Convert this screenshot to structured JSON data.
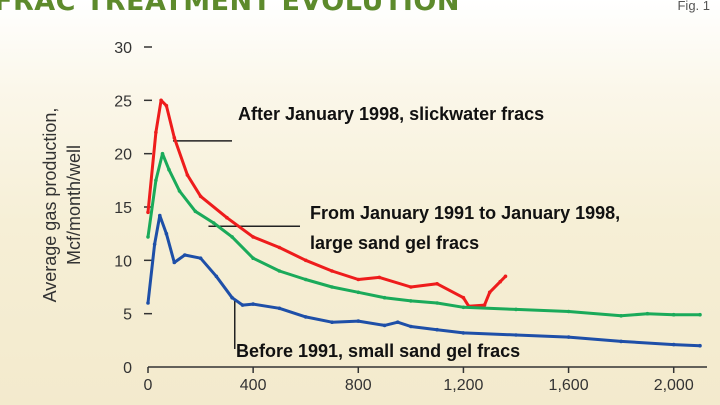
{
  "header": {
    "title": "FRAC TREATMENT EVOLUTION",
    "figure_label": "Fig. 1"
  },
  "chart_data": {
    "type": "line",
    "title": "FRAC TREATMENT EVOLUTION",
    "xlabel": "",
    "ylabel_lines": [
      "Average gas production,",
      "Mcf/month/well"
    ],
    "xlim": [
      0,
      2100
    ],
    "ylim": [
      0,
      30
    ],
    "x_ticks": [
      0,
      400,
      800,
      1200,
      1600,
      2000
    ],
    "x_tick_labels": [
      "0",
      "400",
      "800",
      "1,200",
      "1,600",
      "2,000"
    ],
    "y_ticks": [
      0,
      5,
      10,
      15,
      20,
      25,
      30
    ],
    "y_tick_labels": [
      "0",
      "5",
      "10",
      "15",
      "20",
      "25",
      "30"
    ],
    "grid": false,
    "legend": "none (direct annotations)",
    "series": [
      {
        "name": "After January 1998, slickwater fracs",
        "color": "#ee1c1c",
        "x": [
          0,
          30,
          50,
          70,
          100,
          150,
          200,
          300,
          400,
          500,
          600,
          700,
          800,
          880,
          1000,
          1100,
          1200,
          1220,
          1280,
          1300,
          1340,
          1360
        ],
        "y": [
          14.5,
          22,
          25,
          24.5,
          21.5,
          18,
          16,
          14,
          12.2,
          11.2,
          10,
          9,
          8.2,
          8.4,
          7.5,
          7.8,
          6.5,
          5.7,
          5.8,
          7,
          8,
          8.5
        ]
      },
      {
        "name": "From January 1991 to January 1998, large sand gel fracs",
        "color": "#1aaa5a",
        "x": [
          0,
          30,
          55,
          80,
          120,
          180,
          250,
          320,
          400,
          500,
          600,
          700,
          800,
          900,
          1000,
          1100,
          1200,
          1400,
          1600,
          1800,
          1900,
          2000,
          2100
        ],
        "y": [
          12.2,
          17.5,
          20,
          18.5,
          16.5,
          14.6,
          13.5,
          12.2,
          10.2,
          9,
          8.2,
          7.5,
          7,
          6.5,
          6.2,
          6,
          5.6,
          5.4,
          5.2,
          4.8,
          5,
          4.9,
          4.9
        ]
      },
      {
        "name": "Before 1991, small sand gel fracs",
        "color": "#1e4fa8",
        "x": [
          0,
          25,
          45,
          70,
          100,
          140,
          200,
          260,
          320,
          360,
          400,
          500,
          600,
          700,
          800,
          900,
          950,
          1000,
          1100,
          1200,
          1400,
          1600,
          1800,
          2000,
          2100
        ],
        "y": [
          6,
          11.5,
          14.2,
          12.5,
          9.8,
          10.5,
          10.2,
          8.5,
          6.5,
          5.8,
          5.9,
          5.5,
          4.7,
          4.2,
          4.3,
          3.9,
          4.2,
          3.8,
          3.5,
          3.2,
          3.0,
          2.8,
          2.4,
          2.1,
          2.0
        ]
      }
    ],
    "annotations": [
      "After January 1998, slickwater fracs",
      "From January 1991 to January 1998,",
      "large sand gel fracs",
      "Before 1991, small sand gel fracs"
    ]
  }
}
